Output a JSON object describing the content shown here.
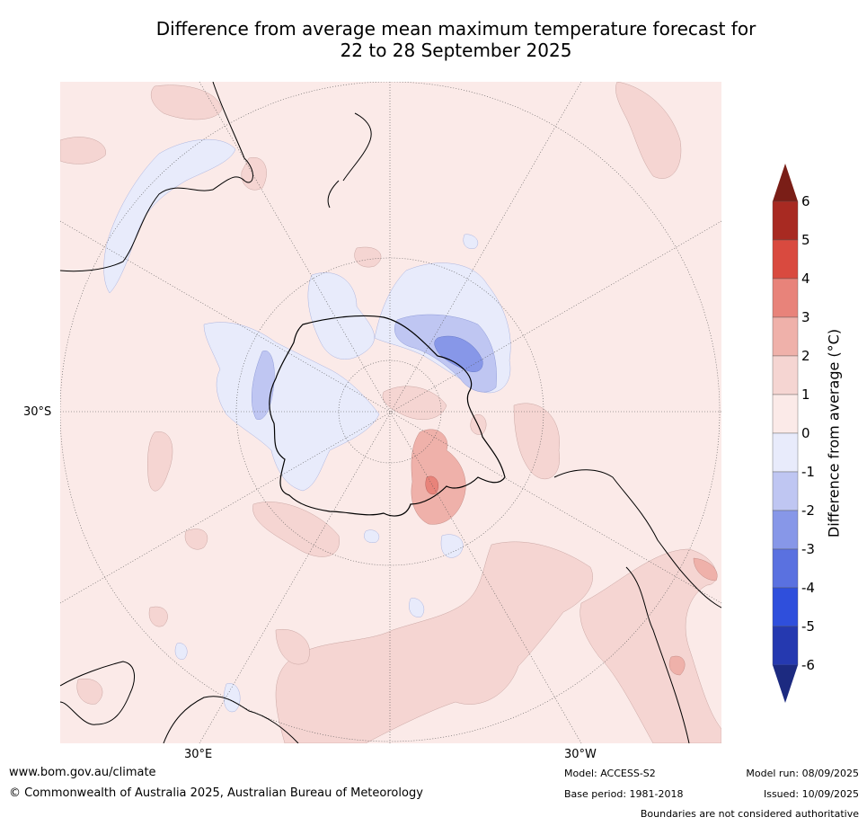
{
  "title_line1": "Difference from average mean maximum temperature forecast for",
  "title_line2": "22 to 28 September 2025",
  "labels": {
    "lat_30s": "30°S",
    "lon_30e": "30°E",
    "lon_30w": "30°W"
  },
  "colorbar": {
    "title": "Difference from average (°C)",
    "ticks": [
      "6",
      "5",
      "4",
      "3",
      "2",
      "1",
      "0",
      "-1",
      "-2",
      "-3",
      "-4",
      "-5",
      "-6"
    ],
    "colors": {
      "gt6": "#7a1e17",
      "5_6": "#a82a22",
      "4_5": "#d94a3f",
      "3_4": "#e8837a",
      "2_3": "#efb1aa",
      "1_2": "#f5d5d2",
      "0_1": "#fbeae8",
      "m1_0": "#e8ebfb",
      "m2_m1": "#bfc6f2",
      "m3_m2": "#8797e8",
      "m4_m3": "#5a71e0",
      "m5_m4": "#2f4fdc",
      "m6_m5": "#2539b0",
      "lt_m6": "#1c2a80"
    }
  },
  "footer": {
    "website": "www.bom.gov.au/climate",
    "copyright": "© Commonwealth of Australia 2025, Australian Bureau of Meteorology",
    "model": "Model: ACCESS-S2",
    "base_period": "Base period: 1981-2018",
    "model_run": "Model run: 08/09/2025",
    "issued": "Issued: 10/09/2025",
    "disclaimer": "Boundaries are not considered authoritative"
  }
}
